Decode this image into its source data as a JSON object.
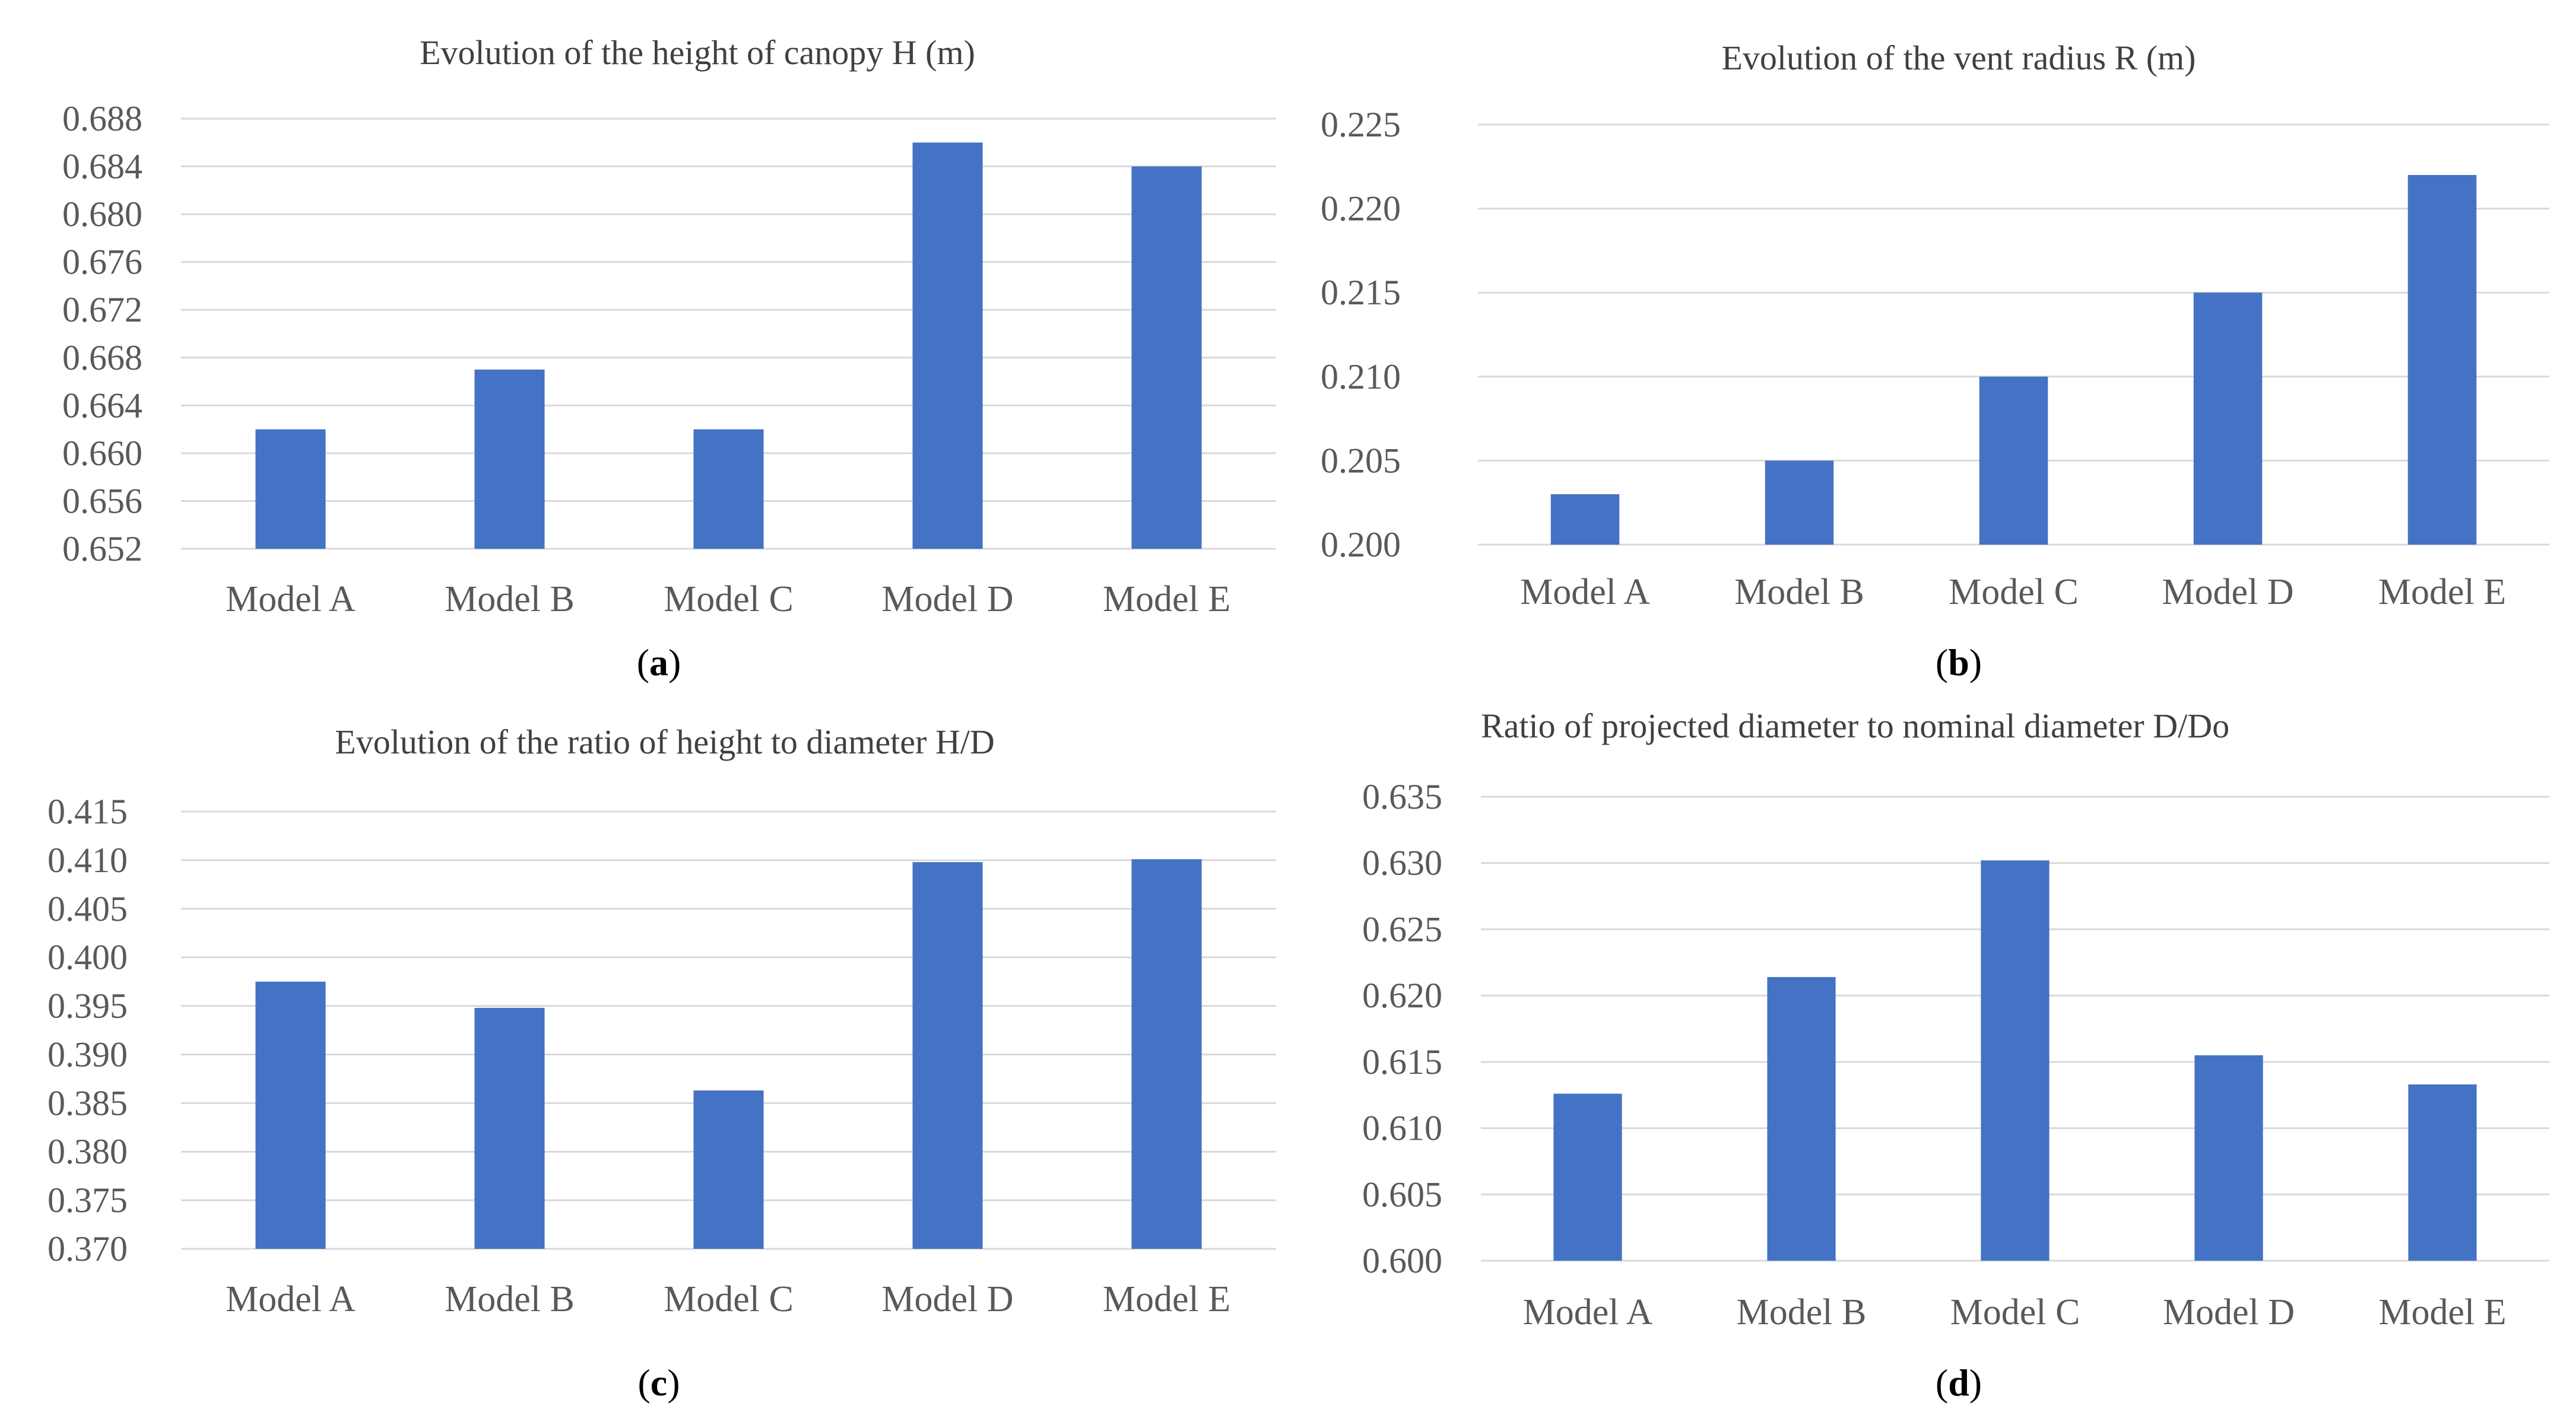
{
  "colors": {
    "bar": "#4472c4",
    "grid": "#d9d9d9",
    "text": "#595959",
    "title": "#404040"
  },
  "chart_data": [
    {
      "type": "bar",
      "panel_label": "a",
      "title": "Evolution of the height of canopy H (m)",
      "categories": [
        "Model A",
        "Model B",
        "Model C",
        "Model D",
        "Model E"
      ],
      "values": [
        0.662,
        0.667,
        0.662,
        0.686,
        0.684
      ],
      "ylim": [
        0.652,
        0.688
      ],
      "yticks": [
        "0.652",
        "0.656",
        "0.660",
        "0.664",
        "0.668",
        "0.672",
        "0.676",
        "0.680",
        "0.684",
        "0.688"
      ],
      "xlabel": "",
      "ylabel": "",
      "grid": true
    },
    {
      "type": "bar",
      "panel_label": "b",
      "title": "Evolution of the vent radius R (m)",
      "categories": [
        "Model A",
        "Model B",
        "Model C",
        "Model D",
        "Model E"
      ],
      "values": [
        0.203,
        0.205,
        0.21,
        0.215,
        0.222
      ],
      "ylim": [
        0.2,
        0.225
      ],
      "yticks": [
        "0.200",
        "0.205",
        "0.210",
        "0.215",
        "0.220",
        "0.225"
      ],
      "xlabel": "",
      "ylabel": "",
      "grid": true
    },
    {
      "type": "bar",
      "panel_label": "c",
      "title": "Evolution of the ratio of height to diameter H/D",
      "categories": [
        "Model A",
        "Model B",
        "Model C",
        "Model D",
        "Model E"
      ],
      "values": [
        0.3975,
        0.3948,
        0.3863,
        0.4098,
        0.4101
      ],
      "ylim": [
        0.37,
        0.415
      ],
      "yticks": [
        "0.370",
        "0.375",
        "0.380",
        "0.385",
        "0.390",
        "0.395",
        "0.400",
        "0.405",
        "0.410",
        "0.415"
      ],
      "xlabel": "",
      "ylabel": "",
      "grid": true
    },
    {
      "type": "bar",
      "panel_label": "d",
      "title": "Ratio of projected diameter to nominal diameter D/Do",
      "categories": [
        "Model A",
        "Model B",
        "Model C",
        "Model D",
        "Model E"
      ],
      "values": [
        0.6126,
        0.6214,
        0.6302,
        0.6155,
        0.6133
      ],
      "ylim": [
        0.6,
        0.635
      ],
      "yticks": [
        "0.600",
        "0.605",
        "0.610",
        "0.615",
        "0.620",
        "0.625",
        "0.630",
        "0.635"
      ],
      "xlabel": "",
      "ylabel": "",
      "grid": true
    }
  ]
}
